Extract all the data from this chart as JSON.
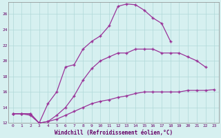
{
  "xlabel": "Windchill (Refroidissement éolien,°C)",
  "bg_color": "#d6f0f0",
  "line_color": "#993399",
  "grid_color": "#b0d8d8",
  "xmin": 0,
  "xmax": 23,
  "ymin": 12,
  "ymax": 27,
  "yticks": [
    12,
    14,
    16,
    18,
    20,
    22,
    24,
    26
  ],
  "xticks": [
    0,
    1,
    2,
    3,
    4,
    5,
    6,
    7,
    8,
    9,
    10,
    11,
    12,
    13,
    14,
    15,
    16,
    17,
    18,
    19,
    20,
    21,
    22,
    23
  ],
  "curve1_x": [
    0,
    1,
    2,
    3,
    4,
    5,
    6,
    7,
    8,
    9,
    10,
    11,
    12,
    13,
    14,
    15,
    16,
    17,
    18
  ],
  "curve1_y": [
    13.2,
    13.2,
    13.0,
    12.0,
    14.5,
    16.0,
    19.2,
    19.5,
    21.5,
    22.5,
    23.2,
    24.5,
    27.0,
    27.3,
    27.2,
    26.5,
    25.5,
    24.8,
    22.5
  ],
  "curve2_x": [
    0,
    1,
    2,
    3,
    4,
    5,
    6,
    7,
    8,
    9,
    10,
    11,
    12,
    13,
    14,
    15,
    16,
    17,
    18,
    19,
    20,
    21,
    22
  ],
  "curve2_y": [
    13.2,
    13.2,
    13.2,
    12.0,
    12.2,
    13.0,
    14.0,
    15.5,
    17.5,
    19.0,
    20.0,
    20.5,
    21.0,
    21.0,
    21.5,
    21.5,
    21.5,
    21.0,
    21.0,
    21.0,
    20.5,
    20.0,
    19.2
  ],
  "curve3_x": [
    0,
    1,
    2,
    3,
    4,
    5,
    6,
    7,
    8,
    9,
    10,
    11,
    12,
    13,
    14,
    15,
    16,
    17,
    18,
    19,
    20,
    21,
    22,
    23
  ],
  "curve3_y": [
    13.2,
    13.2,
    13.2,
    12.0,
    12.2,
    12.5,
    13.0,
    13.5,
    14.0,
    14.5,
    14.8,
    15.0,
    15.3,
    15.5,
    15.8,
    16.0,
    16.0,
    16.0,
    16.0,
    16.0,
    16.2,
    16.2,
    16.2,
    16.3
  ]
}
